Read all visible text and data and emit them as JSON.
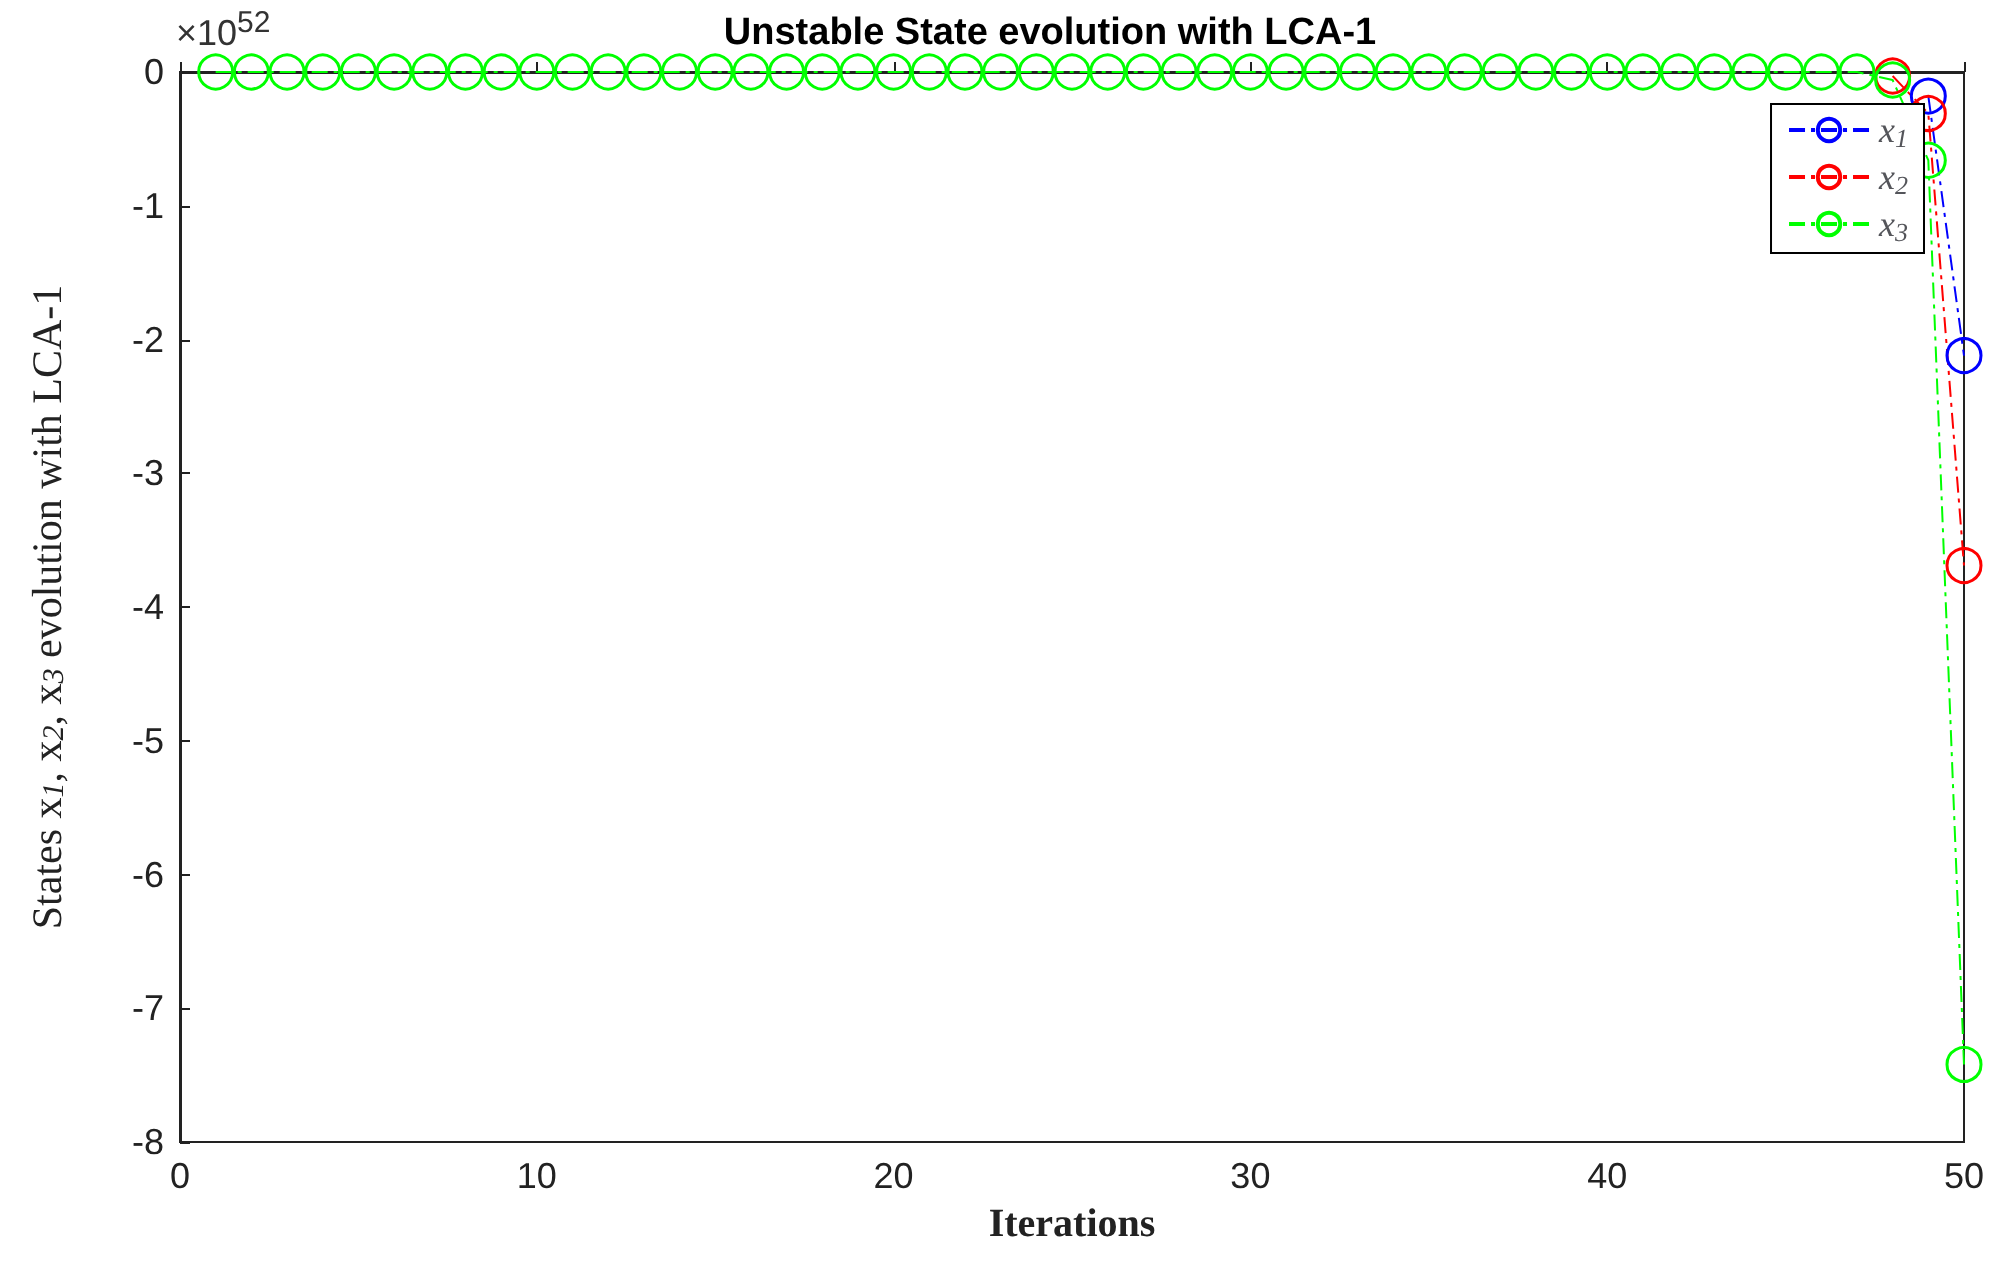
{
  "chart_data": {
    "type": "line",
    "title": "Unstable State evolution with LCA-1",
    "xlabel": "Iterations",
    "ylabel": "States x$_{1}$, x$_{2}$, x$_{3}$ evolution with LCA-1",
    "annotations": [
      "×10$^{52}$"
    ],
    "x": [
      1,
      2,
      3,
      4,
      5,
      6,
      7,
      8,
      9,
      10,
      11,
      12,
      13,
      14,
      15,
      16,
      17,
      18,
      19,
      20,
      21,
      22,
      23,
      24,
      25,
      26,
      27,
      28,
      29,
      30,
      31,
      32,
      33,
      34,
      35,
      36,
      37,
      38,
      39,
      40,
      41,
      42,
      43,
      44,
      45,
      46,
      47,
      48,
      49,
      50
    ],
    "series": [
      {
        "name": "x$_{1}$",
        "color": "#0000ff",
        "values": [
          null,
          null,
          null,
          null,
          null,
          null,
          null,
          null,
          null,
          null,
          null,
          null,
          null,
          null,
          null,
          null,
          null,
          null,
          null,
          null,
          null,
          null,
          null,
          null,
          null,
          null,
          null,
          null,
          null,
          null,
          null,
          null,
          null,
          null,
          null,
          null,
          null,
          null,
          null,
          null,
          null,
          null,
          null,
          null,
          null,
          null,
          null,
          null,
          -0.18,
          -2.12
        ]
      },
      {
        "name": "x$_{2}$",
        "color": "#ff0000",
        "values": [
          null,
          null,
          null,
          null,
          null,
          null,
          null,
          null,
          null,
          null,
          null,
          null,
          null,
          null,
          null,
          null,
          null,
          null,
          null,
          null,
          null,
          null,
          null,
          null,
          null,
          null,
          null,
          null,
          null,
          null,
          null,
          null,
          null,
          null,
          null,
          null,
          null,
          null,
          null,
          null,
          null,
          null,
          null,
          null,
          null,
          null,
          null,
          -0.03,
          -0.31,
          -3.69
        ]
      },
      {
        "name": "x$_{3}$",
        "color": "#00ff00",
        "values": [
          0,
          0,
          0,
          0,
          0,
          0,
          0,
          0,
          0,
          0,
          0,
          0,
          0,
          0,
          0,
          0,
          0,
          0,
          0,
          0,
          0,
          0,
          0,
          0,
          0,
          0,
          0,
          0,
          0,
          0,
          0,
          0,
          0,
          0,
          0,
          0,
          0,
          0,
          0,
          0,
          0,
          0,
          0,
          0,
          0,
          0,
          0,
          -0.06,
          -0.66,
          -7.42
        ]
      }
    ],
    "xlim": [
      0,
      50
    ],
    "xticks": [
      0,
      10,
      20,
      30,
      40,
      50
    ],
    "ylim": [
      -8,
      0
    ],
    "yticks": [
      -8,
      -7,
      -6,
      -5,
      -4,
      -3,
      -2,
      -1,
      0
    ],
    "legend": "top right",
    "marker": "circle",
    "line_style": "dashed",
    "grid": false
  }
}
